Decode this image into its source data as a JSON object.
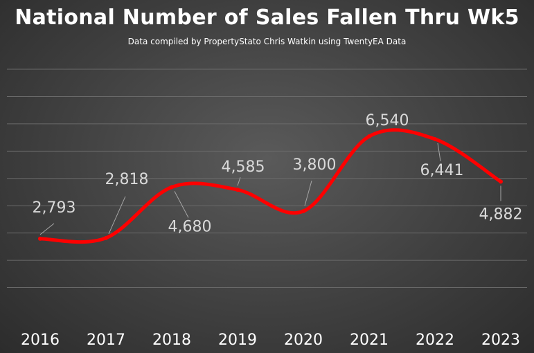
{
  "chart_data": {
    "type": "line",
    "title": "National Number of Sales Fallen Thru Wk5",
    "subtitle": "Data compiled by PropertyStato Chris Watkin using TwentyEA Data",
    "categories": [
      "2016",
      "2017",
      "2018",
      "2019",
      "2020",
      "2021",
      "2022",
      "2023"
    ],
    "values": [
      2793,
      2818,
      4680,
      4585,
      3800,
      6540,
      6441,
      4882
    ],
    "data_labels": [
      "2,793",
      "2,818",
      "4,680",
      "4,585",
      "3,800",
      "6,540",
      "6,441",
      "4,882"
    ],
    "ylim": [
      0,
      9000
    ],
    "smooth": true,
    "grid": true,
    "legend": "none",
    "series_color": "#ff0000",
    "background_color": "#404040"
  }
}
